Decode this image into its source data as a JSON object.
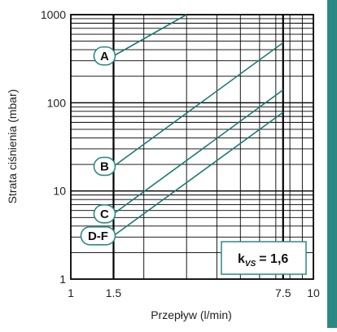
{
  "chart_data": {
    "type": "line",
    "xscale": "log",
    "yscale": "log",
    "xlim": [
      1,
      10
    ],
    "ylim": [
      1,
      1000
    ],
    "xlabel": "Przepływ (l/min)",
    "ylabel": "Strata ciśnienia (mbar)",
    "x_ticks": [
      {
        "value": 1,
        "label": "1"
      },
      {
        "value": 1.5,
        "label": "1.5"
      },
      {
        "value": 7.5,
        "label": "7.5"
      },
      {
        "value": 10,
        "label": "10"
      }
    ],
    "y_ticks": [
      {
        "value": 1,
        "label": "1"
      },
      {
        "value": 10,
        "label": "10"
      },
      {
        "value": 100,
        "label": "100"
      },
      {
        "value": 1000,
        "label": "1000"
      }
    ],
    "grid": true,
    "emphasized_x": [
      1.5,
      7.5
    ],
    "series": [
      {
        "name": "A",
        "x": [
          1.5,
          3.0
        ],
        "y": [
          340,
          1000
        ]
      },
      {
        "name": "B",
        "x": [
          1.5,
          7.5
        ],
        "y": [
          19,
          480
        ]
      },
      {
        "name": "C",
        "x": [
          1.5,
          7.5
        ],
        "y": [
          5.5,
          140
        ]
      },
      {
        "name": "D-F",
        "x": [
          1.5,
          7.5
        ],
        "y": [
          3.1,
          78
        ]
      }
    ],
    "annotation": {
      "k": "k",
      "sub": "VS",
      "value": "= 1,6"
    },
    "colors": {
      "line": "#1a7a74",
      "grid": "#000000",
      "label_border": "#2a8a83",
      "accent_bar": "#2a8a83"
    }
  }
}
